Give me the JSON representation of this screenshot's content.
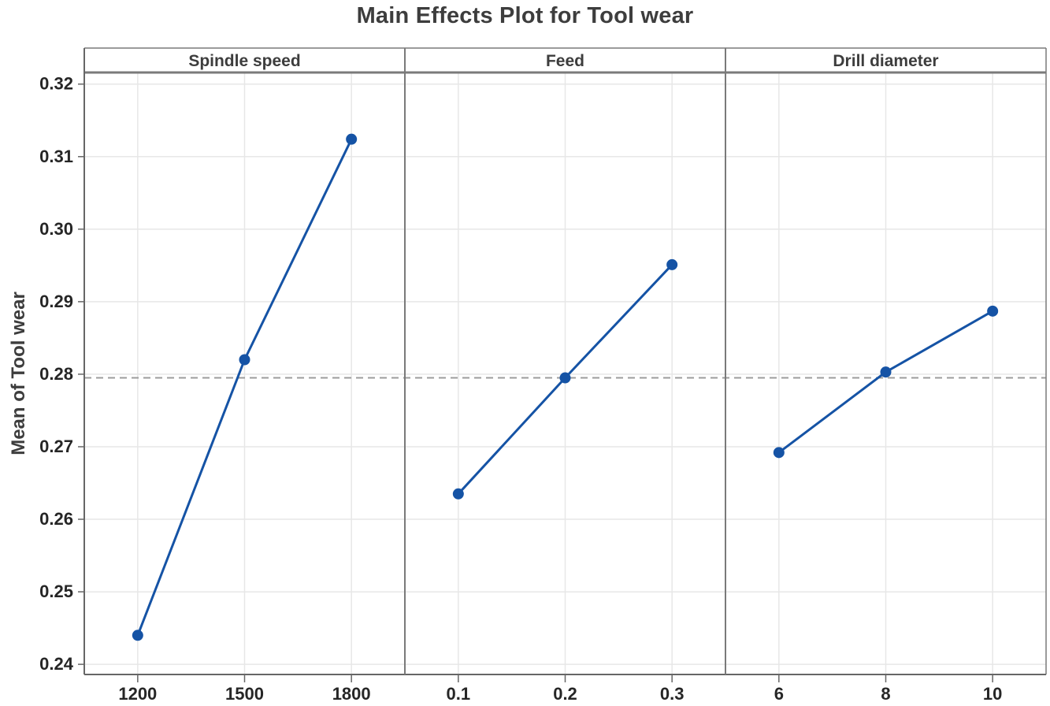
{
  "title": "Main Effects Plot for Tool wear",
  "chart_data": {
    "type": "line",
    "title": "Main Effects Plot for Tool wear",
    "ylabel": "Mean of Tool wear",
    "xlabel": "",
    "ylim": [
      0.2386,
      0.3216
    ],
    "yticks": [
      0.24,
      0.25,
      0.26,
      0.27,
      0.28,
      0.29,
      0.3,
      0.31,
      0.32
    ],
    "grid": true,
    "legend": "none",
    "reference_line": {
      "name": "overall-mean",
      "value": 0.2795,
      "style": "dashed"
    },
    "panels": [
      {
        "label": "Spindle speed",
        "categories": [
          "1200",
          "1500",
          "1800"
        ],
        "values": [
          0.244,
          0.282,
          0.3124
        ]
      },
      {
        "label": "Feed",
        "categories": [
          "0.1",
          "0.2",
          "0.3"
        ],
        "values": [
          0.2635,
          0.2795,
          0.2951
        ]
      },
      {
        "label": "Drill diameter",
        "categories": [
          "6",
          "8",
          "10"
        ],
        "values": [
          0.2692,
          0.2803,
          0.2887
        ]
      }
    ],
    "colors": {
      "series": "#1553a5",
      "marker": "#1553a5",
      "grid": "#e7e7e7",
      "frame": "#7a7a7a",
      "axis": "#666666",
      "reference": "#9c9c9c",
      "tick_text": "#262626",
      "label_text": "#3d3d3d"
    }
  }
}
